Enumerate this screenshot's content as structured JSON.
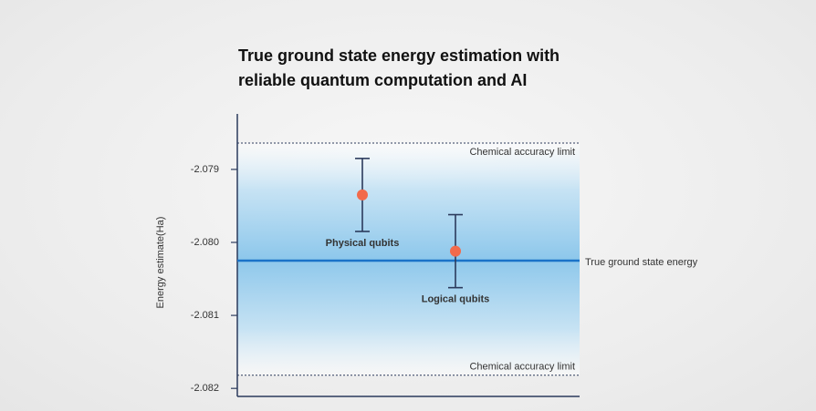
{
  "chart_data": {
    "type": "errorbar",
    "title": "True ground state energy estimation with\nreliable quantum computation and AI",
    "y_label": "Energy estimate(Ha)",
    "categories": [
      "Physical qubits",
      "Logical qubits"
    ],
    "series": [
      {
        "values": [
          -2.07935,
          -2.08012
        ],
        "errors": [
          0.0005,
          0.0005
        ],
        "color": "#f26a4b",
        "bar_color": "#2b3a5c"
      }
    ],
    "ylim": [
      -2.08211,
      -2.07824
    ],
    "yticks": [
      -2.079,
      {
        "value": -2.08,
        "label": "-2.080"
      },
      -2.081,
      -2.082
    ],
    "reference_lines": [
      {
        "label": "Chemical accuracy limit",
        "value": -2.07864,
        "style": "dotted",
        "color": "#2b3a5c"
      },
      {
        "label": "True ground state energy",
        "value": -2.08025,
        "style": "solid",
        "color": "#1a73c8"
      },
      {
        "label": "Chemical accuracy limit",
        "value": -2.08182,
        "style": "dotted",
        "color": "#2b3a5c"
      }
    ],
    "shaded_band": true
  }
}
